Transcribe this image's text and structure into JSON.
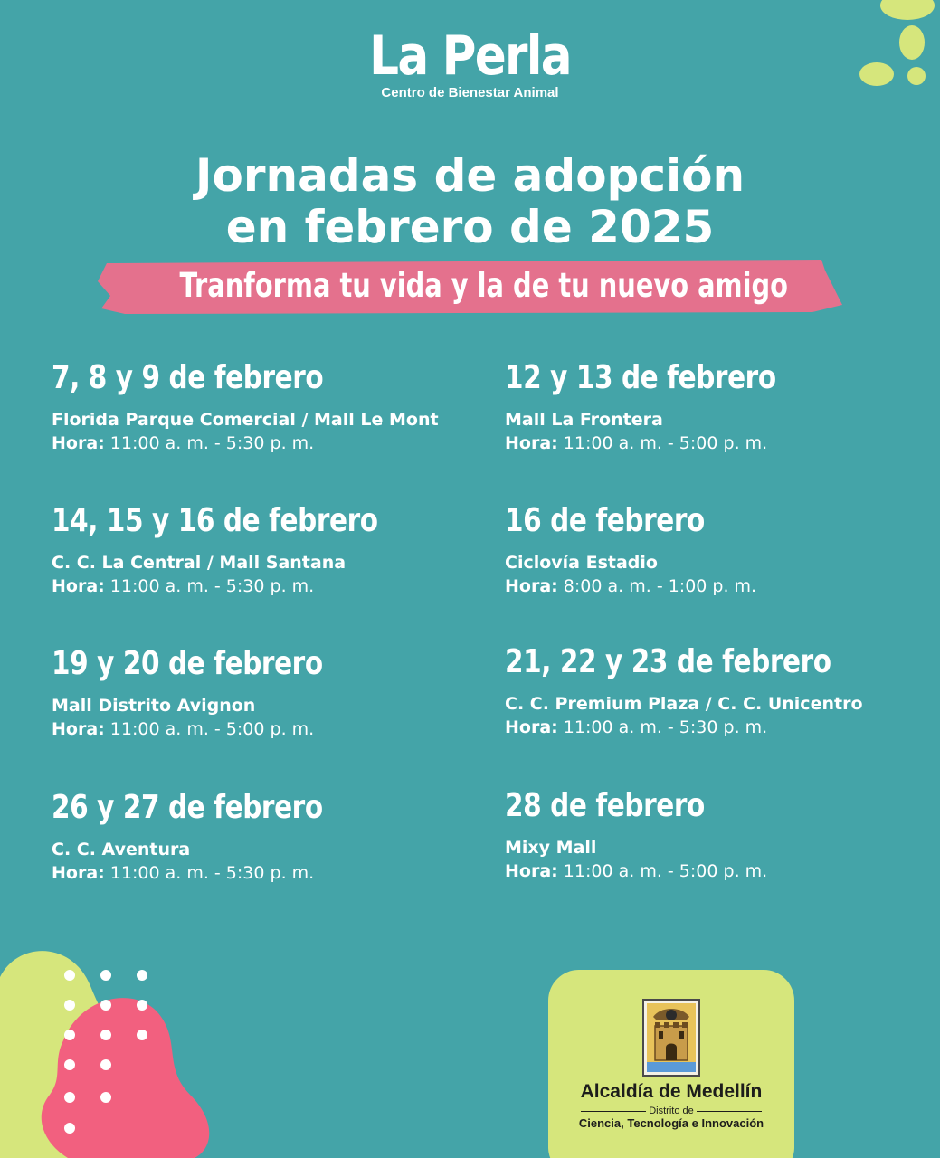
{
  "brand": {
    "name": "La Perla",
    "subtitle": "Centro de Bienestar Animal"
  },
  "headline": {
    "line1": "Jornadas de adopción",
    "line2": "en febrero de 2025",
    "banner": "Tranforma tu vida y la de tu nuevo amigo"
  },
  "events": [
    {
      "date": "7, 8 y 9 de febrero",
      "place": "Florida Parque Comercial / Mall Le Mont",
      "hours_label": "Hora:",
      "hours": "11:00 a. m. - 5:30 p. m."
    },
    {
      "date": "12 y 13 de febrero",
      "place": "Mall La Frontera",
      "hours_label": "Hora:",
      "hours": "11:00 a. m. - 5:00 p. m."
    },
    {
      "date": "14, 15 y 16 de febrero",
      "place": "C. C. La Central / Mall Santana",
      "hours_label": "Hora:",
      "hours": "11:00 a. m. - 5:30 p. m."
    },
    {
      "date": "16 de febrero",
      "place": "Ciclovía Estadio",
      "hours_label": "Hora:",
      "hours": "8:00 a. m. - 1:00 p. m."
    },
    {
      "date": "19 y 20 de febrero",
      "place": "Mall Distrito Avignon",
      "hours_label": "Hora:",
      "hours": "11:00 a. m. - 5:00 p. m."
    },
    {
      "date": "21, 22 y 23 de febrero",
      "place": "C. C. Premium Plaza / C. C. Unicentro",
      "hours_label": "Hora:",
      "hours": "11:00 a. m. - 5:30 p. m."
    },
    {
      "date": "26 y 27 de febrero",
      "place": "C. C. Aventura",
      "hours_label": "Hora:",
      "hours": "11:00 a. m. - 5:30 p. m."
    },
    {
      "date": "28 de febrero",
      "place": "Mixy Mall",
      "hours_label": "Hora:",
      "hours": "11:00 a. m. - 5:00 p. m."
    }
  ],
  "footer_logo": {
    "name": "Alcaldía de Medellín",
    "district": "Distrito de",
    "science": "Ciencia, Tecnología e Innovación",
    "icon": "coat-of-arms-icon"
  },
  "colors": {
    "background": "#44a4a8",
    "banner_pink": "#e4718d",
    "lime": "#d6e67c",
    "pink_blob": "#f2607f",
    "text": "#ffffff"
  }
}
